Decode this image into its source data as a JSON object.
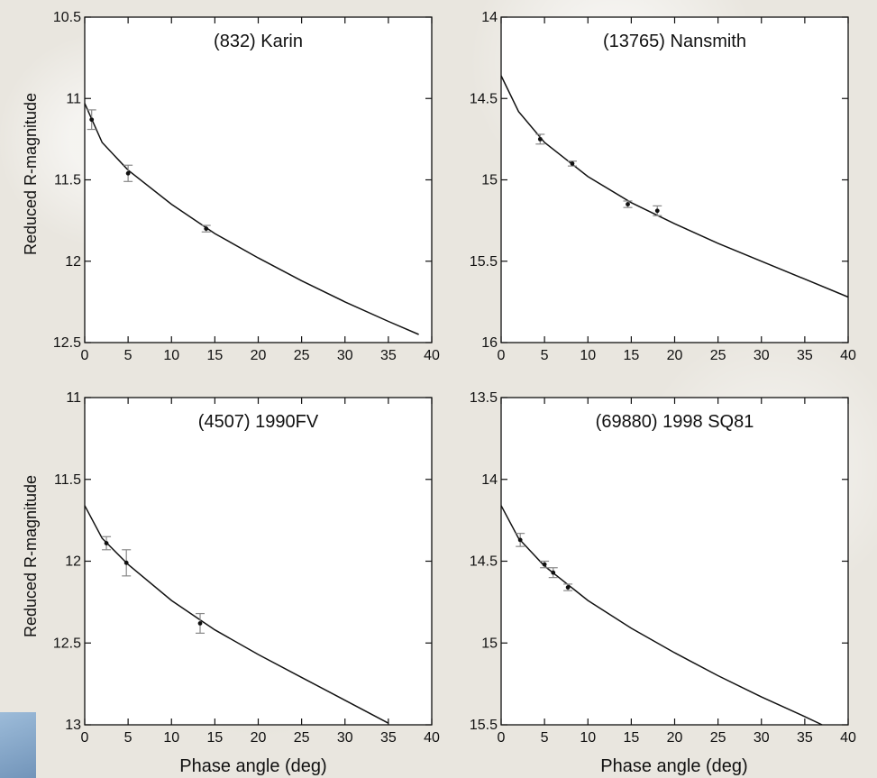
{
  "figure": {
    "ylabel": "Reduced R-magnitude",
    "xlabel": "Phase angle (deg)"
  },
  "chart_data": [
    {
      "type": "scatter",
      "title": "(832) Karin",
      "xlabel": "",
      "ylabel": "Reduced R-magnitude",
      "xlim": [
        0,
        40
      ],
      "ylim": [
        10.5,
        12.5
      ],
      "y_inverted": true,
      "x_ticks": [
        0,
        5,
        10,
        15,
        20,
        25,
        30,
        35,
        40
      ],
      "y_ticks": [
        10.5,
        11,
        11.5,
        12,
        12.5
      ],
      "grid": false,
      "points": [
        {
          "x": 0.8,
          "y": 11.13,
          "err": 0.06
        },
        {
          "x": 5.0,
          "y": 11.46,
          "err": 0.05
        },
        {
          "x": 14.0,
          "y": 11.8,
          "err": 0.02
        }
      ],
      "curve": [
        [
          0,
          11.03
        ],
        [
          2,
          11.27
        ],
        [
          5,
          11.44
        ],
        [
          10,
          11.65
        ],
        [
          15,
          11.83
        ],
        [
          20,
          11.98
        ],
        [
          25,
          12.12
        ],
        [
          30,
          12.25
        ],
        [
          35,
          12.37
        ],
        [
          38.5,
          12.45
        ]
      ]
    },
    {
      "type": "scatter",
      "title": "(13765) Nansmith",
      "xlabel": "",
      "ylabel": "",
      "xlim": [
        0,
        40
      ],
      "ylim": [
        14,
        16
      ],
      "y_inverted": true,
      "x_ticks": [
        0,
        5,
        10,
        15,
        20,
        25,
        30,
        35,
        40
      ],
      "y_ticks": [
        14,
        14.5,
        15,
        15.5,
        16
      ],
      "grid": false,
      "points": [
        {
          "x": 4.5,
          "y": 14.75,
          "err": 0.03
        },
        {
          "x": 8.2,
          "y": 14.9,
          "err": 0.015
        },
        {
          "x": 14.6,
          "y": 15.15,
          "err": 0.02
        },
        {
          "x": 18.0,
          "y": 15.19,
          "err": 0.03
        }
      ],
      "curve": [
        [
          0,
          14.36
        ],
        [
          2,
          14.58
        ],
        [
          5,
          14.77
        ],
        [
          10,
          14.98
        ],
        [
          15,
          15.14
        ],
        [
          20,
          15.27
        ],
        [
          25,
          15.39
        ],
        [
          30,
          15.5
        ],
        [
          35,
          15.61
        ],
        [
          40,
          15.72
        ]
      ]
    },
    {
      "type": "scatter",
      "title": "(4507) 1990FV",
      "xlabel": "Phase angle (deg)",
      "ylabel": "Reduced R-magnitude",
      "xlim": [
        0,
        40
      ],
      "ylim": [
        11,
        13
      ],
      "y_inverted": true,
      "x_ticks": [
        0,
        5,
        10,
        15,
        20,
        25,
        30,
        35,
        40
      ],
      "y_ticks": [
        11,
        11.5,
        12,
        12.5,
        13
      ],
      "grid": false,
      "points": [
        {
          "x": 2.5,
          "y": 11.89,
          "err": 0.04
        },
        {
          "x": 4.8,
          "y": 12.01,
          "err": 0.08
        },
        {
          "x": 13.3,
          "y": 12.38,
          "err": 0.06
        }
      ],
      "curve": [
        [
          0,
          11.66
        ],
        [
          2,
          11.86
        ],
        [
          5,
          12.02
        ],
        [
          10,
          12.24
        ],
        [
          15,
          12.42
        ],
        [
          20,
          12.57
        ],
        [
          25,
          12.71
        ],
        [
          30,
          12.85
        ],
        [
          35,
          12.99
        ]
      ]
    },
    {
      "type": "scatter",
      "title": "(69880) 1998 SQ81",
      "xlabel": "Phase angle (deg)",
      "ylabel": "",
      "xlim": [
        0,
        40
      ],
      "ylim": [
        13.5,
        15.5
      ],
      "y_inverted": true,
      "x_ticks": [
        0,
        5,
        10,
        15,
        20,
        25,
        30,
        35,
        40
      ],
      "y_ticks": [
        13.5,
        14,
        14.5,
        15,
        15.5
      ],
      "grid": false,
      "points": [
        {
          "x": 2.2,
          "y": 14.37,
          "err": 0.04
        },
        {
          "x": 5.0,
          "y": 14.52,
          "err": 0.02
        },
        {
          "x": 6.0,
          "y": 14.57,
          "err": 0.03
        },
        {
          "x": 7.7,
          "y": 14.66,
          "err": 0.02
        }
      ],
      "curve": [
        [
          0,
          14.16
        ],
        [
          2,
          14.36
        ],
        [
          5,
          14.53
        ],
        [
          10,
          14.74
        ],
        [
          15,
          14.91
        ],
        [
          20,
          15.06
        ],
        [
          25,
          15.2
        ],
        [
          30,
          15.33
        ],
        [
          35,
          15.45
        ],
        [
          37,
          15.5
        ]
      ]
    }
  ]
}
